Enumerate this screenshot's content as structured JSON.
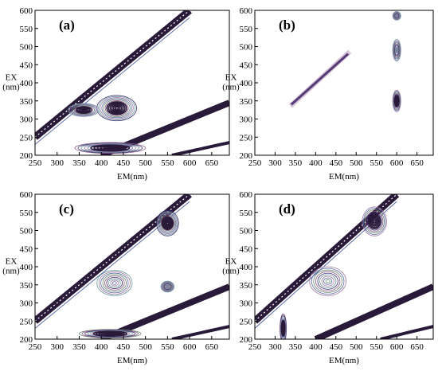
{
  "chart_data": [
    {
      "type": "contour",
      "panel_label": "(a)",
      "xlabel": "EM(nm)",
      "ylabel": [
        "EX",
        "(nm)"
      ],
      "xlim": [
        250,
        690
      ],
      "ylim": [
        200,
        600
      ],
      "xticks": [
        250,
        300,
        350,
        400,
        450,
        500,
        550,
        600,
        650
      ],
      "yticks": [
        200,
        250,
        300,
        350,
        400,
        450,
        500,
        550,
        600
      ],
      "peaks": [
        {
          "em": 435,
          "ex": 330,
          "intensity": 1.0,
          "sx": 45,
          "sy": 35
        },
        {
          "em": 360,
          "ex": 325,
          "intensity": 0.8,
          "sx": 35,
          "sy": 18
        },
        {
          "em": 420,
          "ex": 220,
          "intensity": 0.9,
          "sx": 80,
          "sy": 15
        }
      ]
    },
    {
      "type": "contour",
      "panel_label": "(b)",
      "xlabel": "EM(nm)",
      "ylabel": [
        "EX",
        "(nm)"
      ],
      "xlim": [
        250,
        690
      ],
      "ylim": [
        200,
        600
      ],
      "xticks": [
        250,
        300,
        350,
        400,
        450,
        500,
        550,
        600,
        650
      ],
      "yticks": [
        200,
        250,
        300,
        350,
        400,
        450,
        500,
        550,
        600
      ],
      "peaks": [
        {
          "em": 600,
          "ex": 350,
          "intensity": 0.8,
          "sx": 10,
          "sy": 30
        },
        {
          "em": 600,
          "ex": 490,
          "intensity": 0.7,
          "sx": 10,
          "sy": 30
        },
        {
          "em": 600,
          "ex": 585,
          "intensity": 0.6,
          "sx": 10,
          "sy": 12
        }
      ]
    },
    {
      "type": "contour",
      "panel_label": "(c)",
      "xlabel": "EM(nm)",
      "ylabel": [
        "EX",
        "(nm)"
      ],
      "xlim": [
        250,
        690
      ],
      "ylim": [
        200,
        600
      ],
      "xticks": [
        250,
        300,
        350,
        400,
        450,
        500,
        550,
        600,
        650
      ],
      "yticks": [
        200,
        250,
        300,
        350,
        400,
        450,
        500,
        550,
        600
      ],
      "peaks": [
        {
          "em": 550,
          "ex": 520,
          "intensity": 1.0,
          "sx": 25,
          "sy": 35
        },
        {
          "em": 550,
          "ex": 345,
          "intensity": 0.7,
          "sx": 15,
          "sy": 15
        },
        {
          "em": 430,
          "ex": 355,
          "intensity": 0.6,
          "sx": 40,
          "sy": 35
        },
        {
          "em": 420,
          "ex": 215,
          "intensity": 0.9,
          "sx": 70,
          "sy": 12
        }
      ]
    },
    {
      "type": "contour",
      "panel_label": "(d)",
      "xlabel": "EM(nm)",
      "ylabel": [
        "EX",
        "(nm)"
      ],
      "xlim": [
        250,
        690
      ],
      "ylim": [
        200,
        600
      ],
      "xticks": [
        250,
        300,
        350,
        400,
        450,
        500,
        550,
        600,
        650
      ],
      "yticks": [
        200,
        250,
        300,
        350,
        400,
        450,
        500,
        550,
        600
      ],
      "peaks": [
        {
          "em": 545,
          "ex": 525,
          "intensity": 0.8,
          "sx": 30,
          "sy": 40
        },
        {
          "em": 430,
          "ex": 360,
          "intensity": 0.6,
          "sx": 45,
          "sy": 40
        },
        {
          "em": 320,
          "ex": 230,
          "intensity": 0.9,
          "sx": 8,
          "sy": 40
        }
      ]
    }
  ]
}
